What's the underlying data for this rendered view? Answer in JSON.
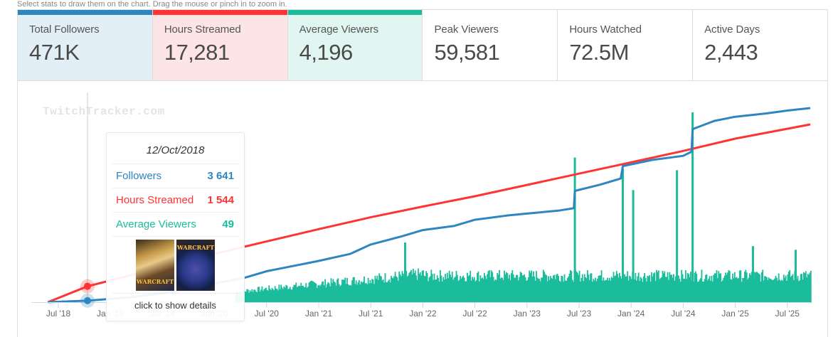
{
  "hint": "Select stats to draw them on the chart. Drag the mouse or pinch in to zoom in.",
  "stats": [
    {
      "label": "Total Followers",
      "value": "471K",
      "color": "#2e86c1",
      "bg": "#e3eff7",
      "active": true
    },
    {
      "label": "Hours Streamed",
      "value": "17,281",
      "color": "#ff3333",
      "bg": "#fde5e5",
      "active": true
    },
    {
      "label": "Average Viewers",
      "value": "4,196",
      "color": "#1abc9c",
      "bg": "#e1f6f1",
      "active": true
    },
    {
      "label": "Peak Viewers",
      "value": "59,581",
      "color": "",
      "bg": "#ffffff",
      "active": false
    },
    {
      "label": "Hours Watched",
      "value": "72.5M",
      "color": "",
      "bg": "#ffffff",
      "active": false
    },
    {
      "label": "Active Days",
      "value": "2,443",
      "color": "",
      "bg": "#ffffff",
      "active": false
    }
  ],
  "watermark": "TwitchTracker.com",
  "tooltip": {
    "date": "12/Oct/2018",
    "rows": [
      {
        "label": "Followers",
        "value": "3 641",
        "color": "#2e86c1"
      },
      {
        "label": "Hours Streamed",
        "value": "1 544",
        "color": "#ff3333"
      },
      {
        "label": "Average Viewers",
        "value": "49",
        "color": "#1abc9c"
      }
    ],
    "games": [
      {
        "name": "Warcraft III",
        "logo": "WARCRAFT"
      },
      {
        "name": "World of Warcraft",
        "logo": "WARCRAFT"
      }
    ],
    "footer": "click to show details"
  },
  "chart_data": {
    "type": "line",
    "title": "",
    "xlabel": "",
    "ylabel": "",
    "x_ticks": [
      "Jul '18",
      "Jan '19",
      "Jul '19",
      "Jan '20",
      "Jul '20",
      "Jan '21",
      "Jul '21",
      "Jan '22",
      "Jul '22",
      "Jan '23",
      "Jul '23",
      "Jan '24",
      "Jul '24",
      "Jan '25",
      "Jul '25"
    ],
    "x_range": [
      "2018-05",
      "2025-09"
    ],
    "grid": false,
    "legend": "none",
    "series": [
      {
        "name": "Followers",
        "type": "line",
        "color": "#2e86c1",
        "x": [
          2018.4,
          2018.78,
          2019.2,
          2019.6,
          2020.0,
          2020.3,
          2020.5,
          2020.8,
          2021.0,
          2021.3,
          2021.5,
          2021.8,
          2022.0,
          2022.3,
          2022.5,
          2022.8,
          2023.0,
          2023.3,
          2023.45,
          2023.46,
          2023.7,
          2023.9,
          2023.92,
          2024.2,
          2024.5,
          2024.58,
          2024.59,
          2024.8,
          2025.0,
          2025.3,
          2025.5,
          2025.72
        ],
        "y": [
          0,
          3641,
          12000,
          25000,
          45000,
          60000,
          75000,
          90000,
          100000,
          117000,
          140000,
          160000,
          175000,
          185000,
          200000,
          210000,
          215000,
          222000,
          228000,
          270000,
          285000,
          300000,
          330000,
          345000,
          355000,
          365000,
          420000,
          440000,
          450000,
          458000,
          465000,
          471000
        ]
      },
      {
        "name": "Hours Streamed",
        "type": "line",
        "color": "#ff3333",
        "x": [
          2018.4,
          2018.78,
          2019.5,
          2020.0,
          2020.5,
          2021.0,
          2021.5,
          2022.0,
          2022.5,
          2023.0,
          2023.5,
          2024.0,
          2024.5,
          2025.0,
          2025.72
        ],
        "y": [
          0,
          1544,
          3400,
          4700,
          5900,
          7100,
          8250,
          9300,
          10300,
          11400,
          12500,
          13600,
          14700,
          15900,
          17281
        ]
      },
      {
        "name": "Average Viewers",
        "type": "bar",
        "color": "#1abc9c",
        "typical_range": [
          600,
          1600
        ],
        "spikes": [
          {
            "x": 2021.83,
            "y": 3300
          },
          {
            "x": 2023.46,
            "y": 8000
          },
          {
            "x": 2023.92,
            "y": 7400
          },
          {
            "x": 2024.02,
            "y": 6200
          },
          {
            "x": 2024.44,
            "y": 7300
          },
          {
            "x": 2024.59,
            "y": 10500
          },
          {
            "x": 2025.17,
            "y": 3100
          },
          {
            "x": 2025.58,
            "y": 2900
          }
        ]
      }
    ],
    "hover_point": {
      "date": "2018-10-12",
      "followers": 3641,
      "hours_streamed": 1544,
      "average_viewers": 49
    }
  }
}
